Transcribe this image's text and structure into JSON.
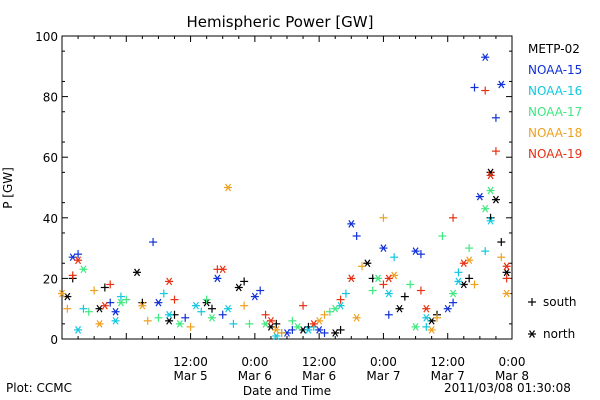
{
  "chart_data": {
    "type": "scatter",
    "title": "Hemispheric Power [GW]",
    "ylabel": "P [GW]",
    "xlabel": "Date and Time",
    "ylim": [
      0,
      100
    ],
    "yticks": [
      0,
      20,
      40,
      60,
      80,
      100
    ],
    "xlim": [
      "2011-03-04 12:00",
      "2011-03-08 00:00"
    ],
    "xticks": [
      {
        "t": "2011-03-05 00:00",
        "label": ""
      },
      {
        "t": "2011-03-05 12:00",
        "label": "12:00\nMar 5"
      },
      {
        "t": "2011-03-06 00:00",
        "label": "0:00\nMar 6"
      },
      {
        "t": "2011-03-06 12:00",
        "label": "12:00\nMar 6"
      },
      {
        "t": "2011-03-07 00:00",
        "label": "0:00\nMar 7"
      },
      {
        "t": "2011-03-07 12:00",
        "label": "12:00\nMar 7"
      },
      {
        "t": "2011-03-08 00:00",
        "label": "0:00\nMar 8"
      }
    ],
    "grid": false,
    "legend_position": "right",
    "marker_legend": [
      {
        "marker": "+",
        "label": "south"
      },
      {
        "marker": "*",
        "label": "north"
      }
    ],
    "series": [
      {
        "name": "METP-02",
        "color": "#000000",
        "south": [
          [
            "2011-03-04 14:00",
            20
          ],
          [
            "2011-03-04 20:00",
            17
          ],
          [
            "2011-03-05 03:00",
            12
          ],
          [
            "2011-03-05 09:00",
            8
          ],
          [
            "2011-03-05 16:00",
            10
          ],
          [
            "2011-03-05 22:00",
            19
          ],
          [
            "2011-03-06 04:00",
            5
          ],
          [
            "2011-03-06 10:00",
            4
          ],
          [
            "2011-03-06 16:00",
            3
          ],
          [
            "2011-03-06 22:00",
            20
          ],
          [
            "2011-03-07 04:00",
            14
          ],
          [
            "2011-03-07 10:00",
            8
          ],
          [
            "2011-03-07 16:00",
            20
          ],
          [
            "2011-03-07 20:00",
            40
          ],
          [
            "2011-03-07 22:00",
            32
          ]
        ],
        "north": [
          [
            "2011-03-04 13:00",
            14
          ],
          [
            "2011-03-04 19:00",
            10
          ],
          [
            "2011-03-05 02:00",
            22
          ],
          [
            "2011-03-05 08:00",
            6
          ],
          [
            "2011-03-05 15:00",
            12
          ],
          [
            "2011-03-05 21:00",
            17
          ],
          [
            "2011-03-06 03:00",
            4
          ],
          [
            "2011-03-06 09:00",
            3
          ],
          [
            "2011-03-06 15:00",
            2
          ],
          [
            "2011-03-06 21:00",
            25
          ],
          [
            "2011-03-07 03:00",
            10
          ],
          [
            "2011-03-07 09:00",
            6
          ],
          [
            "2011-03-07 15:00",
            18
          ],
          [
            "2011-03-07 20:00",
            55
          ],
          [
            "2011-03-07 21:00",
            46
          ],
          [
            "2011-03-07 23:00",
            22
          ]
        ]
      },
      {
        "name": "NOAA-15",
        "color": "#1030d8",
        "south": [
          [
            "2011-03-04 15:00",
            28
          ],
          [
            "2011-03-04 21:00",
            12
          ],
          [
            "2011-03-05 05:00",
            32
          ],
          [
            "2011-03-05 11:00",
            7
          ],
          [
            "2011-03-05 18:00",
            8
          ],
          [
            "2011-03-06 01:00",
            16
          ],
          [
            "2011-03-06 07:00",
            3
          ],
          [
            "2011-03-06 13:00",
            2
          ],
          [
            "2011-03-06 19:00",
            34
          ],
          [
            "2011-03-07 01:00",
            8
          ],
          [
            "2011-03-07 07:00",
            28
          ],
          [
            "2011-03-07 13:00",
            12
          ],
          [
            "2011-03-07 17:00",
            83
          ],
          [
            "2011-03-07 21:00",
            73
          ]
        ],
        "north": [
          [
            "2011-03-04 14:00",
            27
          ],
          [
            "2011-03-04 22:00",
            9
          ],
          [
            "2011-03-05 06:00",
            12
          ],
          [
            "2011-03-05 17:00",
            20
          ],
          [
            "2011-03-06 00:00",
            14
          ],
          [
            "2011-03-06 06:00",
            2
          ],
          [
            "2011-03-06 12:00",
            3
          ],
          [
            "2011-03-06 18:00",
            38
          ],
          [
            "2011-03-07 00:00",
            30
          ],
          [
            "2011-03-07 06:00",
            29
          ],
          [
            "2011-03-07 12:00",
            10
          ],
          [
            "2011-03-07 18:00",
            47
          ],
          [
            "2011-03-07 19:00",
            93
          ],
          [
            "2011-03-07 22:00",
            84
          ]
        ]
      },
      {
        "name": "NOAA-16",
        "color": "#10c8e0",
        "south": [
          [
            "2011-03-04 16:00",
            10
          ],
          [
            "2011-03-04 23:00",
            14
          ],
          [
            "2011-03-05 07:00",
            15
          ],
          [
            "2011-03-05 14:00",
            9
          ],
          [
            "2011-03-05 20:00",
            5
          ],
          [
            "2011-03-06 05:00",
            2
          ],
          [
            "2011-03-06 11:00",
            4
          ],
          [
            "2011-03-06 17:00",
            15
          ],
          [
            "2011-03-07 02:00",
            27
          ],
          [
            "2011-03-07 08:00",
            4
          ],
          [
            "2011-03-07 14:00",
            22
          ],
          [
            "2011-03-07 19:00",
            29
          ]
        ],
        "north": [
          [
            "2011-03-04 15:00",
            3
          ],
          [
            "2011-03-04 22:00",
            6
          ],
          [
            "2011-03-05 08:00",
            8
          ],
          [
            "2011-03-05 13:00",
            11
          ],
          [
            "2011-03-05 19:00",
            10
          ],
          [
            "2011-03-06 04:00",
            1
          ],
          [
            "2011-03-06 10:00",
            3
          ],
          [
            "2011-03-06 16:00",
            11
          ],
          [
            "2011-03-07 01:00",
            15
          ],
          [
            "2011-03-07 08:00",
            7
          ],
          [
            "2011-03-07 14:00",
            19
          ],
          [
            "2011-03-07 20:00",
            39
          ]
        ]
      },
      {
        "name": "NOAA-17",
        "color": "#40e880",
        "south": [
          [
            "2011-03-04 17:00",
            9
          ],
          [
            "2011-03-05 00:00",
            13
          ],
          [
            "2011-03-05 06:00",
            7
          ],
          [
            "2011-03-05 15:00",
            13
          ],
          [
            "2011-03-05 23:00",
            5
          ],
          [
            "2011-03-06 07:00",
            6
          ],
          [
            "2011-03-06 14:00",
            9
          ],
          [
            "2011-03-06 22:00",
            16
          ],
          [
            "2011-03-07 05:00",
            18
          ],
          [
            "2011-03-07 11:00",
            34
          ],
          [
            "2011-03-07 16:00",
            30
          ]
        ],
        "north": [
          [
            "2011-03-04 16:00",
            23
          ],
          [
            "2011-03-04 23:00",
            12
          ],
          [
            "2011-03-05 10:00",
            5
          ],
          [
            "2011-03-05 16:00",
            7
          ],
          [
            "2011-03-06 02:00",
            5
          ],
          [
            "2011-03-06 08:00",
            4
          ],
          [
            "2011-03-06 15:00",
            10
          ],
          [
            "2011-03-06 23:00",
            20
          ],
          [
            "2011-03-07 06:00",
            4
          ],
          [
            "2011-03-07 13:00",
            15
          ],
          [
            "2011-03-07 19:00",
            43
          ],
          [
            "2011-03-07 20:00",
            49
          ]
        ]
      },
      {
        "name": "NOAA-18",
        "color": "#f0a020",
        "south": [
          [
            "2011-03-04 13:00",
            10
          ],
          [
            "2011-03-04 18:00",
            16
          ],
          [
            "2011-03-05 04:00",
            6
          ],
          [
            "2011-03-05 12:00",
            4
          ],
          [
            "2011-03-05 22:00",
            11
          ],
          [
            "2011-03-06 05:00",
            2
          ],
          [
            "2011-03-06 13:00",
            8
          ],
          [
            "2011-03-06 20:00",
            24
          ],
          [
            "2011-03-07 00:00",
            40
          ],
          [
            "2011-03-07 10:00",
            7
          ],
          [
            "2011-03-07 17:00",
            18
          ],
          [
            "2011-03-07 22:00",
            27
          ]
        ],
        "north": [
          [
            "2011-03-04 12:00",
            15
          ],
          [
            "2011-03-04 19:00",
            5
          ],
          [
            "2011-03-05 03:00",
            11
          ],
          [
            "2011-03-05 19:00",
            50
          ],
          [
            "2011-03-06 04:00",
            3
          ],
          [
            "2011-03-06 12:00",
            6
          ],
          [
            "2011-03-06 19:00",
            7
          ],
          [
            "2011-03-07 02:00",
            21
          ],
          [
            "2011-03-07 09:00",
            3
          ],
          [
            "2011-03-07 16:00",
            26
          ],
          [
            "2011-03-07 23:00",
            15
          ]
        ]
      },
      {
        "name": "NOAA-19",
        "color": "#e83010",
        "south": [
          [
            "2011-03-04 14:00",
            21
          ],
          [
            "2011-03-04 21:00",
            18
          ],
          [
            "2011-03-05 09:00",
            13
          ],
          [
            "2011-03-05 17:00",
            23
          ],
          [
            "2011-03-06 02:00",
            8
          ],
          [
            "2011-03-06 09:00",
            11
          ],
          [
            "2011-03-06 16:00",
            13
          ],
          [
            "2011-03-07 00:00",
            18
          ],
          [
            "2011-03-07 07:00",
            16
          ],
          [
            "2011-03-07 13:00",
            40
          ],
          [
            "2011-03-07 19:00",
            82
          ],
          [
            "2011-03-07 21:00",
            62
          ],
          [
            "2011-03-07 23:00",
            20
          ]
        ],
        "north": [
          [
            "2011-03-04 15:00",
            26
          ],
          [
            "2011-03-04 20:00",
            11
          ],
          [
            "2011-03-05 08:00",
            19
          ],
          [
            "2011-03-05 18:00",
            23
          ],
          [
            "2011-03-06 03:00",
            6
          ],
          [
            "2011-03-06 11:00",
            5
          ],
          [
            "2011-03-06 18:00",
            20
          ],
          [
            "2011-03-07 01:00",
            20
          ],
          [
            "2011-03-07 08:00",
            10
          ],
          [
            "2011-03-07 15:00",
            25
          ],
          [
            "2011-03-07 20:00",
            54
          ],
          [
            "2011-03-07 23:00",
            24
          ]
        ]
      }
    ]
  },
  "footer": {
    "left": "Plot: CCMC",
    "right": "2011/03/08 01:30:08"
  }
}
